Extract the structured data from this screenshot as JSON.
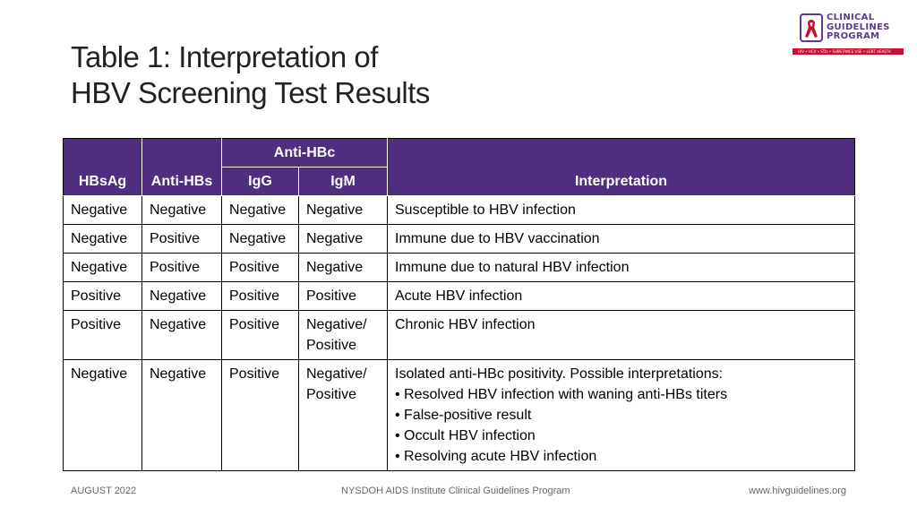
{
  "title": {
    "line1": "Table 1: Interpretation of",
    "line2": "HBV Screening Test Results"
  },
  "logo": {
    "line1": "CLINICAL",
    "line2": "GUIDELINES",
    "line3": "PROGRAM",
    "tagline": "HIV • HCV • STIs • SUBSTANCE USE • LGBT HEALTH",
    "color": "#5c3a8e",
    "ribbon_color": "#c8102e"
  },
  "table": {
    "header_color": "#4f2d7f",
    "headers": {
      "hbsag": "HBsAg",
      "antihbs": "Anti-HBs",
      "antihbc": "Anti-HBc",
      "igg": "IgG",
      "igm": "IgM",
      "interpretation": "Interpretation"
    },
    "rows": [
      {
        "hbsag": "Negative",
        "antihbs": "Negative",
        "igg": "Negative",
        "igm": "Negative",
        "interpretation": "Susceptible to HBV infection"
      },
      {
        "hbsag": "Negative",
        "antihbs": "Positive",
        "igg": "Negative",
        "igm": "Negative",
        "interpretation": "Immune due to HBV vaccination"
      },
      {
        "hbsag": "Negative",
        "antihbs": "Positive",
        "igg": "Positive",
        "igm": "Negative",
        "interpretation": "Immune due to natural HBV infection"
      },
      {
        "hbsag": "Positive",
        "antihbs": "Negative",
        "igg": "Positive",
        "igm": "Positive",
        "interpretation": "Acute HBV infection"
      },
      {
        "hbsag": "Positive",
        "antihbs": "Negative",
        "igg": "Positive",
        "igm_line1": "Negative/",
        "igm_line2": "Positive",
        "interpretation": "Chronic HBV infection"
      },
      {
        "hbsag": "Negative",
        "antihbs": "Negative",
        "igg": "Positive",
        "igm_line1": "Negative/",
        "igm_line2": "Positive",
        "interpretation": "Isolated anti-HBc positivity. Possible interpretations:",
        "bullets": [
          "Resolved HBV infection with waning anti-HBs titers",
          "False-positive result",
          "Occult HBV infection",
          "Resolving acute HBV infection"
        ]
      }
    ]
  },
  "footer": {
    "date": "AUGUST 2022",
    "org": "NYSDOH AIDS Institute Clinical Guidelines Program",
    "url": "www.hivguidelines.org"
  }
}
